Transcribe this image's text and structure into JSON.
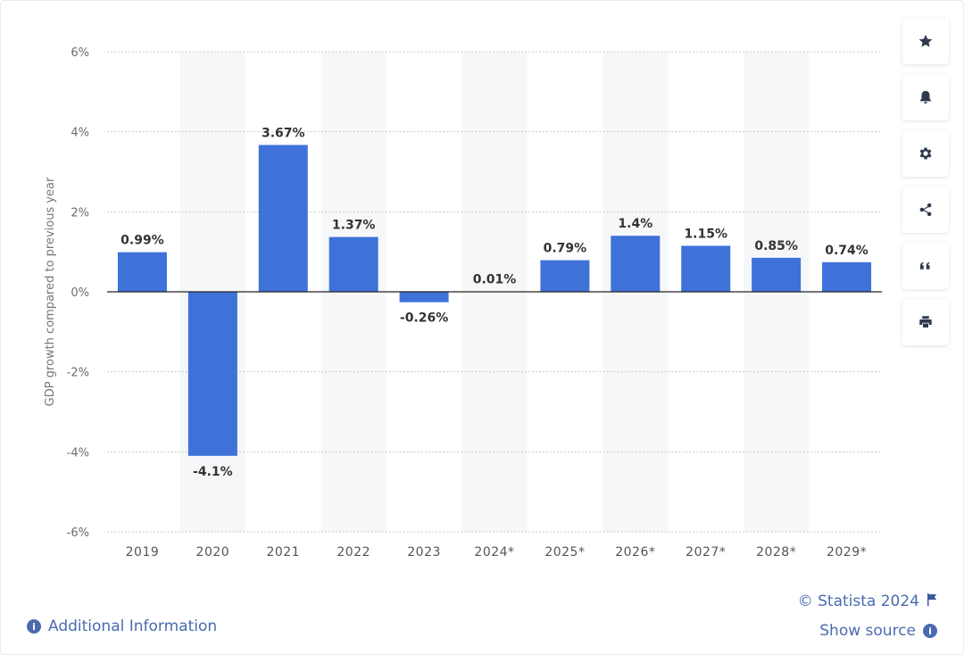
{
  "chart_data": {
    "type": "bar",
    "categories": [
      "2019",
      "2020",
      "2021",
      "2022",
      "2023",
      "2024*",
      "2025*",
      "2026*",
      "2027*",
      "2028*",
      "2029*"
    ],
    "values": [
      0.99,
      -4.1,
      3.67,
      1.37,
      -0.26,
      0.01,
      0.79,
      1.4,
      1.15,
      0.85,
      0.74
    ],
    "value_labels": [
      "0.99%",
      "-4.1%",
      "3.67%",
      "1.37%",
      "-0.26%",
      "0.01%",
      "0.79%",
      "1.4%",
      "1.15%",
      "0.85%",
      "0.74%"
    ],
    "ylabel": "GDP growth compared to previous year",
    "ylim": [
      -6,
      6
    ],
    "yticks": [
      6,
      4,
      2,
      0,
      -2,
      -4,
      -6
    ],
    "ytick_labels": [
      "6%",
      "4%",
      "2%",
      "0%",
      "-2%",
      "-4%",
      "-6%"
    ],
    "bar_color": "#3f72d9",
    "alt_band_color": "#f6f7f9",
    "grid": true
  },
  "toolbar": {
    "items": [
      {
        "name": "favorite",
        "icon": "star-icon"
      },
      {
        "name": "notify",
        "icon": "bell-icon"
      },
      {
        "name": "settings",
        "icon": "gear-icon"
      },
      {
        "name": "share",
        "icon": "share-icon"
      },
      {
        "name": "cite",
        "icon": "quote-icon"
      },
      {
        "name": "print",
        "icon": "print-icon"
      }
    ]
  },
  "footer": {
    "copyright": "© Statista 2024",
    "show_source": "Show source",
    "additional_info": "Additional Information"
  },
  "colors": {
    "link": "#4a6bb0",
    "bar": "#3f72d9"
  }
}
